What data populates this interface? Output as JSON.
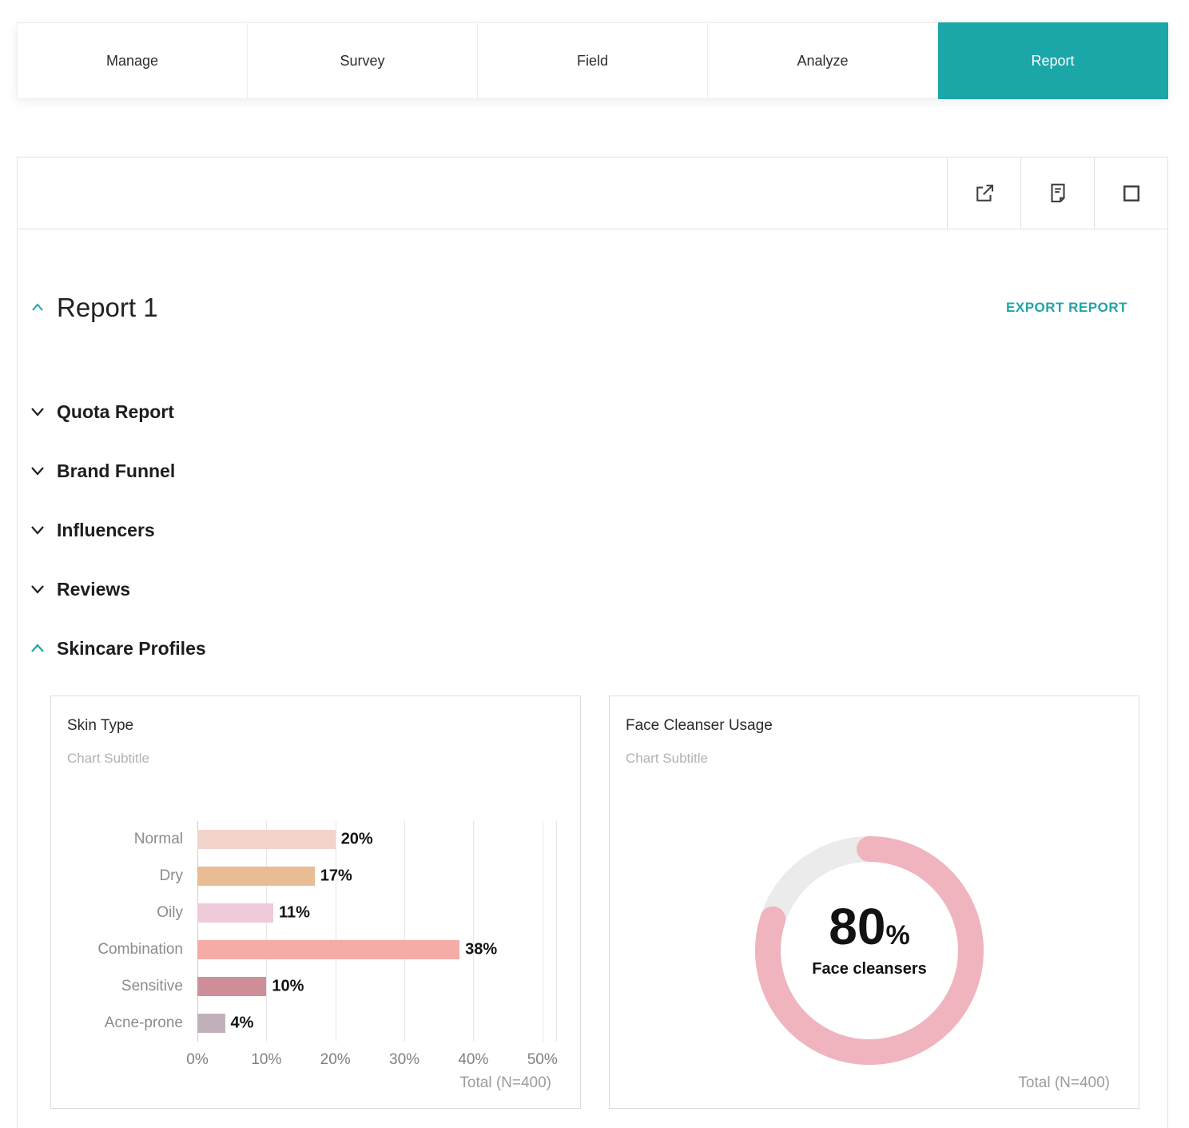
{
  "tabs": {
    "items": [
      {
        "label": "Manage",
        "active": false
      },
      {
        "label": "Survey",
        "active": false
      },
      {
        "label": "Field",
        "active": false
      },
      {
        "label": "Analyze",
        "active": false
      },
      {
        "label": "Report",
        "active": true
      }
    ]
  },
  "toolbar": {
    "icons": [
      "external-link",
      "document-report",
      "checkbox-square"
    ]
  },
  "report": {
    "title": "Report 1",
    "export_label": "EXPORT REPORT"
  },
  "sections": [
    {
      "label": "Quota Report",
      "expanded": false
    },
    {
      "label": "Brand Funnel",
      "expanded": false
    },
    {
      "label": "Influencers",
      "expanded": false
    },
    {
      "label": "Reviews",
      "expanded": false
    },
    {
      "label": "Skincare Profiles",
      "expanded": true
    }
  ],
  "colors": {
    "accent": "#1ba6a8",
    "donut_arc": "#f0b4be",
    "donut_track": "#ebebeb",
    "bar_colors": [
      "#f3d4cc",
      "#e8bc94",
      "#eecada",
      "#f5aba6",
      "#cf8f99",
      "#c1b0ba"
    ]
  },
  "chart_data": [
    {
      "type": "bar",
      "orientation": "horizontal",
      "title": "Skin Type",
      "subtitle": "Chart Subtitle",
      "categories": [
        "Normal",
        "Dry",
        "Oily",
        "Combination",
        "Sensitive",
        "Acne-prone"
      ],
      "values": [
        20,
        17,
        11,
        38,
        10,
        4
      ],
      "value_suffix": "%",
      "bar_colors": [
        "#f3d4cc",
        "#e8bc94",
        "#eecada",
        "#f5aba6",
        "#cf8f99",
        "#c1b0ba"
      ],
      "xlim": [
        0,
        52
      ],
      "xticks": [
        0,
        10,
        20,
        30,
        40,
        50
      ],
      "xtick_suffix": "%",
      "grid": true,
      "footer": "Total (N=400)"
    },
    {
      "type": "donut",
      "title": "Face Cleanser Usage",
      "subtitle": "Chart Subtitle",
      "value": 80,
      "unit": "%",
      "label": "Face cleansers",
      "arc_color": "#f0b4be",
      "track_color": "#ebebeb",
      "footer": "Total (N=400)"
    }
  ]
}
